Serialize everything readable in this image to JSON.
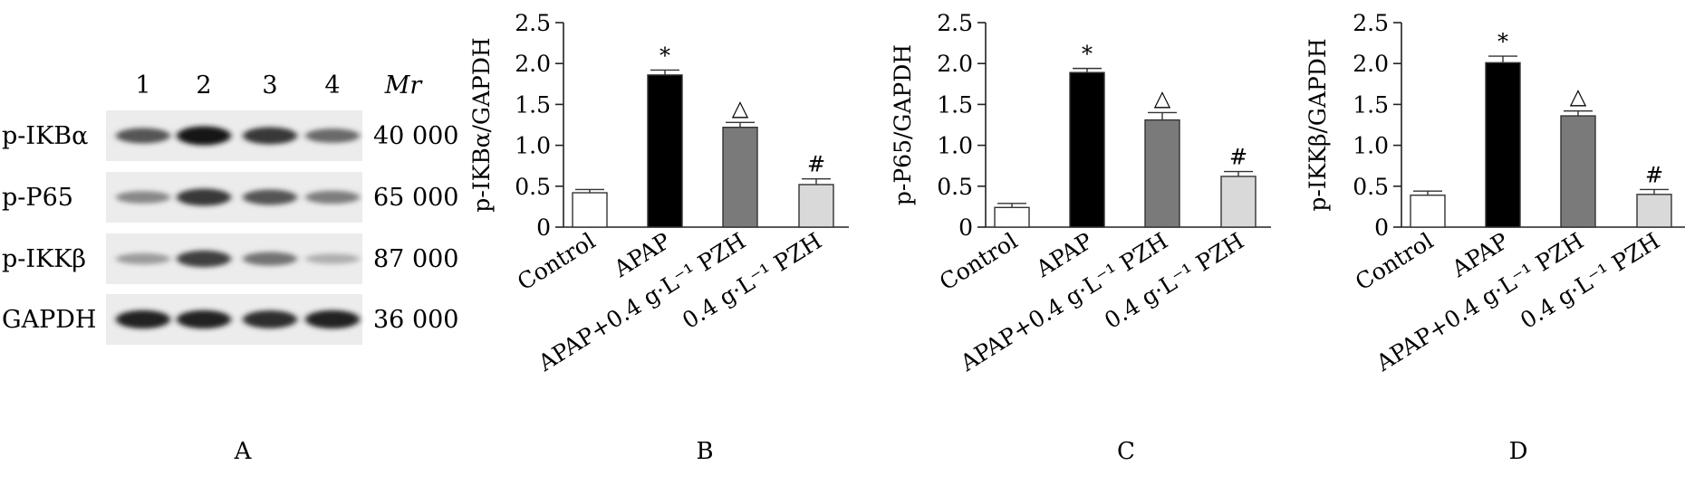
{
  "blot": {
    "lanes": [
      "1",
      "2",
      "3",
      "4"
    ],
    "mr_header": "Mr",
    "rows": [
      {
        "label": "p-IKBα",
        "mr": "40 000",
        "intensity": [
          0.7,
          1.0,
          0.85,
          0.6
        ]
      },
      {
        "label": "p-P65",
        "mr": "65 000",
        "intensity": [
          0.45,
          0.85,
          0.7,
          0.5
        ]
      },
      {
        "label": "p-IKKβ",
        "mr": "87 000",
        "intensity": [
          0.35,
          0.8,
          0.55,
          0.25
        ]
      },
      {
        "label": "GAPDH",
        "mr": "36 000",
        "intensity": [
          0.95,
          0.95,
          0.9,
          0.95
        ]
      }
    ]
  },
  "panel_labels": [
    "A",
    "B",
    "C",
    "D"
  ],
  "chart_data": [
    {
      "type": "bar",
      "ylabel": "p-IKBα/GAPDH",
      "categories": [
        "Control",
        "APAP",
        "APAP+0.4 g·L⁻¹ PZH",
        "0.4 g·L⁻¹ PZH"
      ],
      "values": [
        0.42,
        1.86,
        1.22,
        0.52
      ],
      "errors": [
        0.04,
        0.06,
        0.06,
        0.07
      ],
      "annotations": [
        "",
        "*",
        "△",
        "#"
      ],
      "colors": [
        "#ffffff",
        "#000000",
        "#7a7a7a",
        "#d9d9d9"
      ],
      "ylim": [
        0,
        2.5
      ],
      "yticks": [
        "0",
        "0.5",
        "1.0",
        "1.5",
        "2.0",
        "2.5"
      ],
      "grid": false
    },
    {
      "type": "bar",
      "ylabel": "p-P65/GAPDH",
      "categories": [
        "Control",
        "APAP",
        "APAP+0.4 g·L⁻¹ PZH",
        "0.4 g·L⁻¹ PZH"
      ],
      "values": [
        0.24,
        1.89,
        1.31,
        0.62
      ],
      "errors": [
        0.05,
        0.05,
        0.09,
        0.06
      ],
      "annotations": [
        "",
        "*",
        "△",
        "#"
      ],
      "colors": [
        "#ffffff",
        "#000000",
        "#7a7a7a",
        "#d9d9d9"
      ],
      "ylim": [
        0,
        2.5
      ],
      "yticks": [
        "0",
        "0.5",
        "1.0",
        "1.5",
        "2.0",
        "2.5"
      ],
      "grid": false
    },
    {
      "type": "bar",
      "ylabel": "p-IKKβ/GAPDH",
      "categories": [
        "Control",
        "APAP",
        "APAP+0.4 g·L⁻¹ PZH",
        "0.4 g·L⁻¹ PZH"
      ],
      "values": [
        0.39,
        2.01,
        1.36,
        0.4
      ],
      "errors": [
        0.05,
        0.08,
        0.06,
        0.06
      ],
      "annotations": [
        "",
        "*",
        "△",
        "#"
      ],
      "colors": [
        "#ffffff",
        "#000000",
        "#7a7a7a",
        "#d9d9d9"
      ],
      "ylim": [
        0,
        2.5
      ],
      "yticks": [
        "0",
        "0.5",
        "1.0",
        "1.5",
        "2.0",
        "2.5"
      ],
      "grid": false
    }
  ]
}
